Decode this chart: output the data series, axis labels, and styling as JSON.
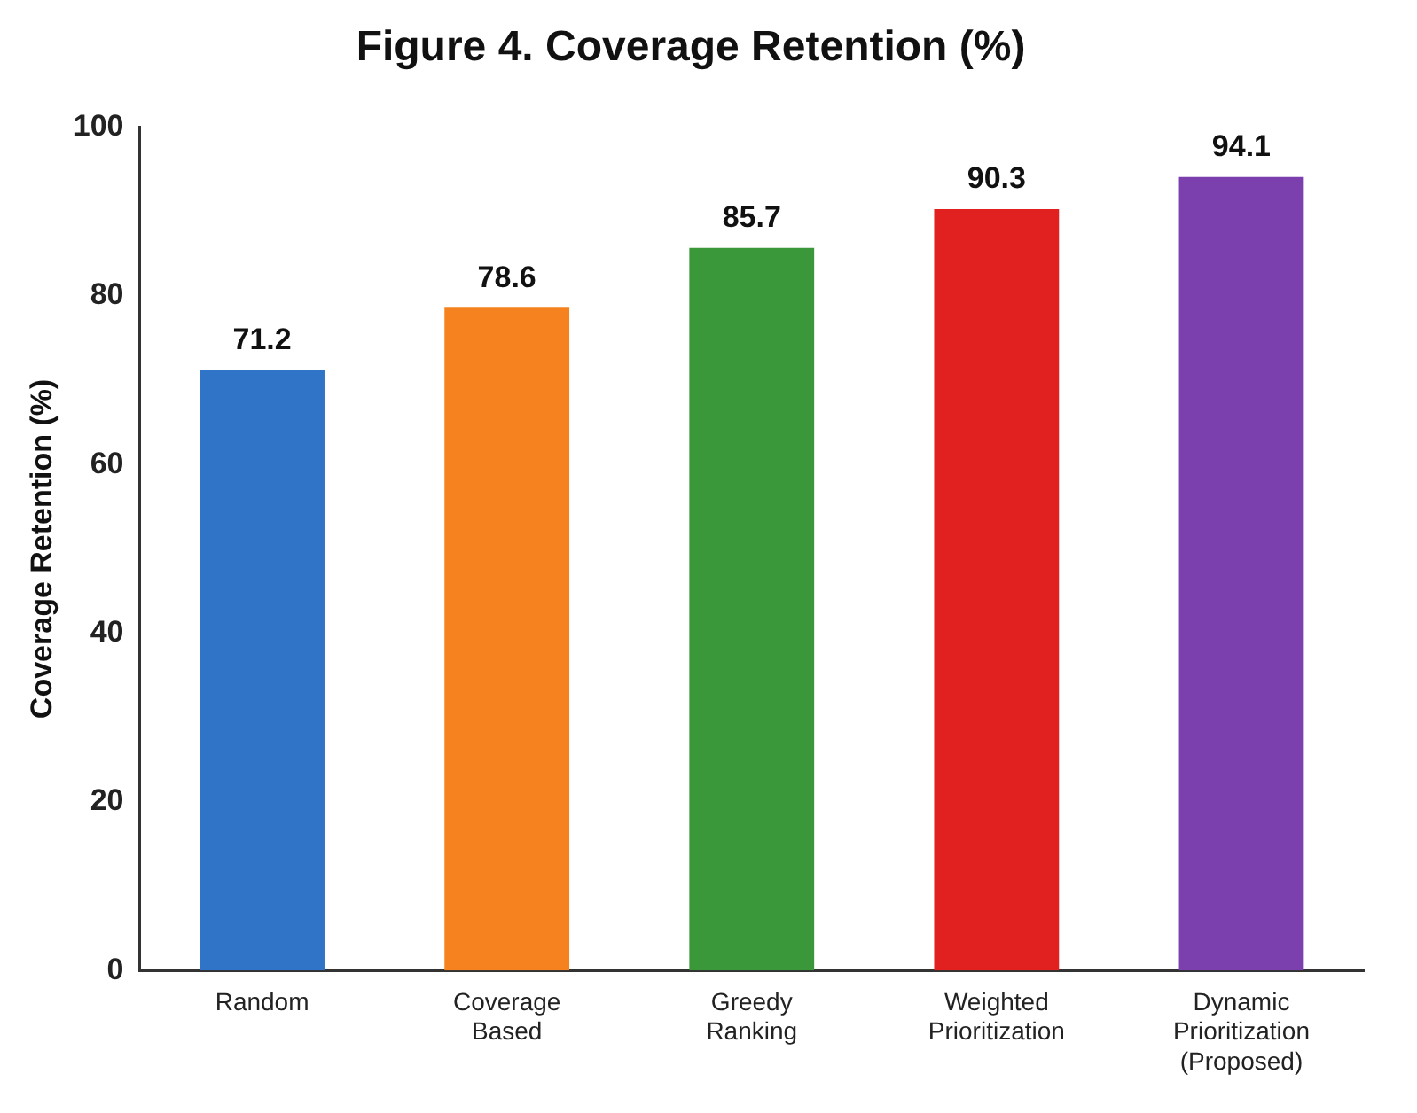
{
  "chart_data": {
    "type": "bar",
    "title": "Figure 4. Coverage Retention (%)",
    "ylabel": "Coverage Retention (%)",
    "categories": [
      "Random",
      "Coverage Based",
      "Greedy Ranking",
      "Weighted Prioritization",
      "Dynamic Prioritization (Proposed)"
    ],
    "values": [
      71.2,
      78.6,
      85.7,
      90.3,
      94.1
    ],
    "colors": [
      "#2f74c6",
      "#f5821f",
      "#3a983a",
      "#e0211f",
      "#7b3fae"
    ],
    "ylim": [
      0,
      100
    ],
    "yticks": [
      0,
      20,
      40,
      60,
      80,
      100
    ],
    "grid": false,
    "legend": false,
    "data_labels": true
  }
}
